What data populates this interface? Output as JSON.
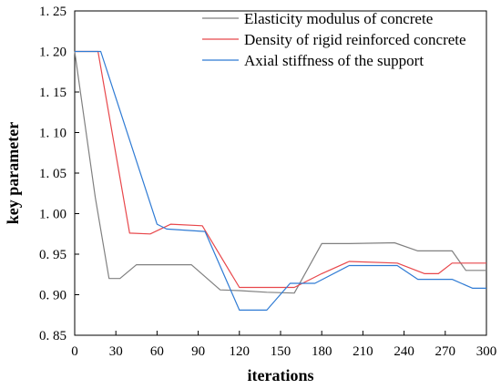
{
  "chart_data": {
    "type": "line",
    "title": "",
    "xlabel": "iterations",
    "ylabel": "key parameter",
    "xlim": [
      0,
      300
    ],
    "ylim": [
      0.85,
      1.25
    ],
    "xticks": [
      0,
      30,
      60,
      90,
      120,
      150,
      180,
      210,
      240,
      270,
      300
    ],
    "xtick_labels": [
      "0",
      "30",
      "60",
      "90",
      "120",
      "150",
      "180",
      "210",
      "240",
      "270",
      "300"
    ],
    "yticks": [
      0.85,
      0.9,
      0.95,
      1.0,
      1.05,
      1.1,
      1.15,
      1.2,
      1.25
    ],
    "ytick_labels": [
      "0. 85",
      "0. 90",
      "0. 95",
      "1. 00",
      "1. 05",
      "1. 10",
      "1. 15",
      "1. 20",
      "1. 25"
    ],
    "grid": false,
    "legend_position": "top-right",
    "series": [
      {
        "name": "Elasticity modulus of concrete",
        "color": "#808080",
        "x": [
          0,
          15,
          25,
          33,
          45,
          60,
          85,
          106,
          120,
          140,
          160,
          180,
          200,
          233,
          250,
          275,
          285,
          300
        ],
        "y": [
          1.2,
          1.02,
          0.92,
          0.92,
          0.937,
          0.937,
          0.937,
          0.906,
          0.905,
          0.903,
          0.902,
          0.963,
          0.963,
          0.964,
          0.954,
          0.954,
          0.93,
          0.93
        ]
      },
      {
        "name": "Density of rigid reinforced concrete",
        "color": "#e8474b",
        "x": [
          0,
          17,
          40,
          55,
          70,
          93,
          120,
          160,
          180,
          200,
          235,
          255,
          265,
          275,
          300
        ],
        "y": [
          1.2,
          1.2,
          0.976,
          0.975,
          0.987,
          0.985,
          0.909,
          0.909,
          0.926,
          0.941,
          0.939,
          0.926,
          0.926,
          0.939,
          0.939
        ]
      },
      {
        "name": "Axial stiffness of the support",
        "color": "#2f7bd4",
        "x": [
          0,
          19,
          60,
          67,
          95,
          120,
          140,
          157,
          175,
          200,
          235,
          250,
          265,
          275,
          290,
          300
        ],
        "y": [
          1.2,
          1.2,
          0.987,
          0.981,
          0.978,
          0.881,
          0.881,
          0.914,
          0.914,
          0.936,
          0.936,
          0.919,
          0.919,
          0.919,
          0.908,
          0.908
        ]
      }
    ]
  }
}
